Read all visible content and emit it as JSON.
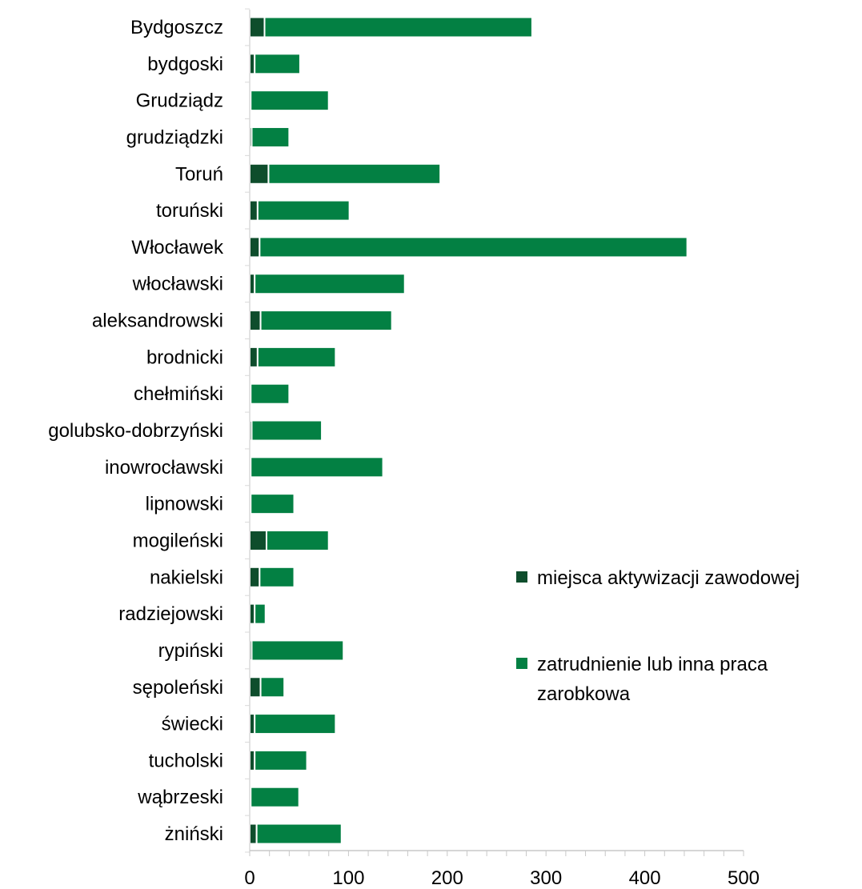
{
  "chart_data": {
    "type": "bar",
    "orientation": "horizontal",
    "stacked": true,
    "title": "",
    "xlabel": "",
    "ylabel": "",
    "xlim": [
      0,
      500
    ],
    "xticks": [
      0,
      100,
      200,
      300,
      400,
      500
    ],
    "grid": false,
    "legend_position": "right",
    "categories": [
      "Bydgoszcz",
      "bydgoski",
      "Grudziądz",
      "grudziądzki",
      "Toruń",
      "toruński",
      "Włocławek",
      "włocławski",
      "aleksandrowski",
      "brodnicki",
      "chełmiński",
      "golubsko-dobrzyński",
      "inowrocławski",
      "lipnowski",
      "mogileński",
      "nakielski",
      "radziejowski",
      "rypiński",
      "sępoleński",
      "świecki",
      "tucholski",
      "wąbrzeski",
      "żniński"
    ],
    "series": [
      {
        "name": "miejsca aktywizacji zawodowej",
        "color": "#0e4d2c",
        "values": [
          15,
          5,
          1,
          2,
          19,
          8,
          10,
          5,
          11,
          8,
          1,
          2,
          1,
          1,
          17,
          10,
          5,
          2,
          11,
          5,
          5,
          1,
          7
        ]
      },
      {
        "name": "zatrudnienie lub inna praca zarobkowa",
        "color": "#038043",
        "values": [
          271,
          46,
          79,
          38,
          174,
          93,
          433,
          152,
          133,
          79,
          39,
          71,
          134,
          44,
          63,
          35,
          11,
          93,
          24,
          82,
          53,
          49,
          86
        ]
      }
    ]
  }
}
